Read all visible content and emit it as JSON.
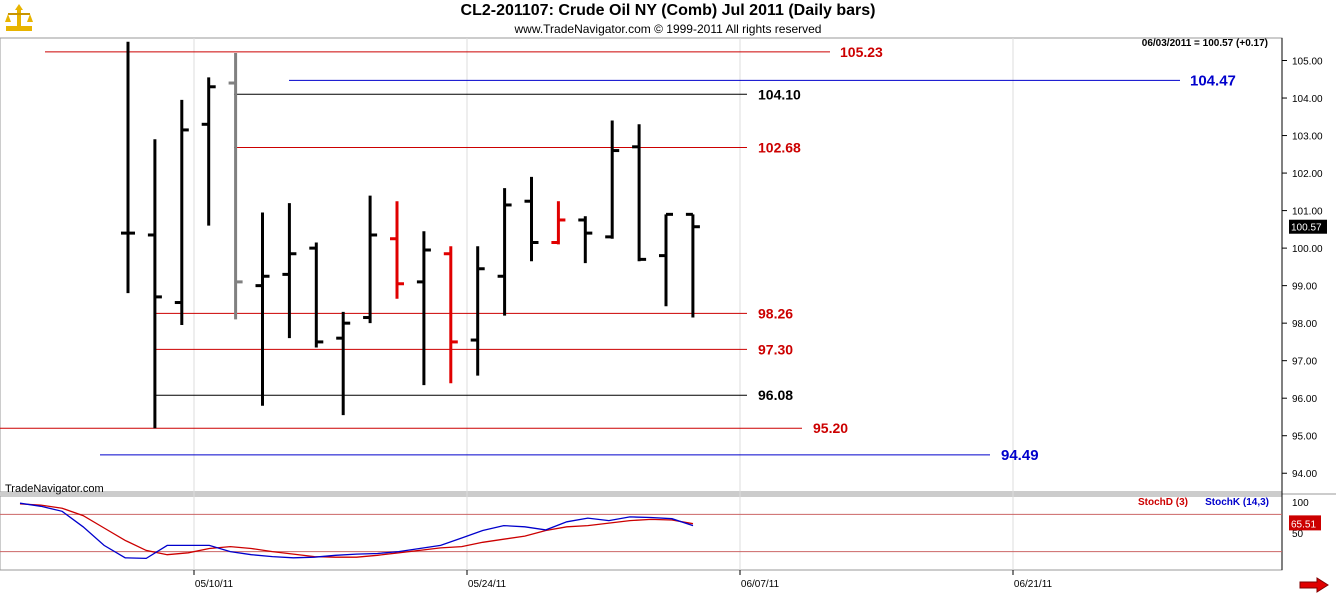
{
  "header": {
    "title": "CL2-201107:  Crude Oil NY (Comb) Jul 2011  (Daily bars)",
    "subtitle": "www.TradeNavigator.com © 1999-2011 All rights reserved",
    "last_quote": "06/03/2011 = 100.57 (+0.17)",
    "watermark": "TradeNavigator.com"
  },
  "colors": {
    "background": "#ffffff",
    "up_bar": "#000000",
    "down_bar": "#e00000",
    "neutral_bar": "#808080",
    "red_level": "#cc0000",
    "black_level": "#000000",
    "blue_level": "#0000cc",
    "stoch_d": "#cc0000",
    "stoch_k": "#0000cc",
    "grid": "#dddddd",
    "logo": "#e8b400"
  },
  "chart_data": [
    {
      "type": "ohlc",
      "ylim": [
        93.5,
        105.6
      ],
      "y_ticks": [
        "94.00",
        "95.00",
        "96.00",
        "97.00",
        "98.00",
        "99.00",
        "100.00",
        "101.00",
        "102.00",
        "103.00",
        "104.00",
        "105.00"
      ],
      "x_ticks": [
        "05/10/11",
        "05/24/11",
        "06/07/11",
        "06/21/11"
      ],
      "last_price_label": "100.57",
      "bars": [
        {
          "open": 100.4,
          "high": 105.5,
          "low": 98.8,
          "close": 100.4,
          "color": "black"
        },
        {
          "open": 100.35,
          "high": 102.9,
          "low": 95.2,
          "close": 98.7,
          "color": "black"
        },
        {
          "open": 98.55,
          "high": 103.95,
          "low": 97.95,
          "close": 103.15,
          "color": "black"
        },
        {
          "open": 103.3,
          "high": 104.55,
          "low": 100.6,
          "close": 104.3,
          "color": "black"
        },
        {
          "open": 104.4,
          "high": 105.2,
          "low": 98.1,
          "close": 99.1,
          "color": "gray"
        },
        {
          "open": 99.0,
          "high": 100.95,
          "low": 95.8,
          "close": 99.25,
          "color": "black"
        },
        {
          "open": 99.3,
          "high": 101.2,
          "low": 97.6,
          "close": 99.85,
          "color": "black"
        },
        {
          "open": 100.0,
          "high": 100.15,
          "low": 97.35,
          "close": 97.5,
          "color": "black"
        },
        {
          "open": 97.6,
          "high": 98.3,
          "low": 95.55,
          "close": 98.0,
          "color": "black"
        },
        {
          "open": 98.15,
          "high": 101.4,
          "low": 98.0,
          "close": 100.35,
          "color": "black"
        },
        {
          "open": 100.25,
          "high": 101.25,
          "low": 98.65,
          "close": 99.05,
          "color": "red"
        },
        {
          "open": 99.1,
          "high": 100.45,
          "low": 96.35,
          "close": 99.95,
          "color": "black"
        },
        {
          "open": 99.85,
          "high": 100.05,
          "low": 96.4,
          "close": 97.5,
          "color": "red"
        },
        {
          "open": 97.55,
          "high": 100.05,
          "low": 96.6,
          "close": 99.45,
          "color": "black"
        },
        {
          "open": 99.25,
          "high": 101.6,
          "low": 98.2,
          "close": 101.15,
          "color": "black"
        },
        {
          "open": 101.25,
          "high": 101.9,
          "low": 99.65,
          "close": 100.15,
          "color": "black"
        },
        {
          "open": 100.15,
          "high": 101.25,
          "low": 100.1,
          "close": 100.75,
          "color": "red"
        },
        {
          "open": 100.75,
          "high": 100.85,
          "low": 99.6,
          "close": 100.4,
          "color": "black"
        },
        {
          "open": 100.3,
          "high": 103.4,
          "low": 100.25,
          "close": 102.6,
          "color": "black"
        },
        {
          "open": 102.7,
          "high": 103.3,
          "low": 99.65,
          "close": 99.7,
          "color": "black"
        },
        {
          "open": 99.8,
          "high": 100.9,
          "low": 98.45,
          "close": 100.9,
          "color": "black"
        },
        {
          "open": 100.9,
          "high": 100.9,
          "low": 98.15,
          "close": 100.57,
          "color": "black"
        }
      ],
      "levels": [
        {
          "value": 105.23,
          "label": "105.23",
          "color": "red"
        },
        {
          "value": 104.47,
          "label": "104.47",
          "color": "blue"
        },
        {
          "value": 104.1,
          "label": "104.10",
          "color": "black"
        },
        {
          "value": 102.68,
          "label": "102.68",
          "color": "red"
        },
        {
          "value": 98.26,
          "label": "98.26",
          "color": "red"
        },
        {
          "value": 97.3,
          "label": "97.30",
          "color": "red"
        },
        {
          "value": 96.08,
          "label": "96.08",
          "color": "black"
        },
        {
          "value": 95.2,
          "label": "95.20",
          "color": "red"
        },
        {
          "value": 94.49,
          "label": "94.49",
          "color": "blue"
        }
      ]
    },
    {
      "type": "line",
      "ylim": [
        0,
        100
      ],
      "y_ticks": [
        "100",
        "50"
      ],
      "reference_lines": [
        80,
        20
      ],
      "last_value_label": "65.51",
      "series": [
        {
          "name": "StochD (3)",
          "color": "red",
          "values": [
            97,
            95,
            90,
            78,
            58,
            38,
            22,
            15,
            18,
            25,
            28,
            25,
            20,
            16,
            12,
            11,
            11,
            14,
            18,
            22,
            26,
            28,
            35,
            40,
            45,
            54,
            60,
            62,
            66,
            70,
            72,
            71,
            65
          ]
        },
        {
          "name": "StochK (14,3)",
          "color": "blue",
          "values": [
            98,
            93,
            85,
            60,
            30,
            10,
            9,
            30,
            30,
            30,
            20,
            15,
            12,
            10,
            11,
            14,
            16,
            17,
            20,
            25,
            30,
            42,
            54,
            62,
            60,
            55,
            68,
            74,
            70,
            76,
            75,
            73,
            62
          ]
        }
      ]
    }
  ]
}
